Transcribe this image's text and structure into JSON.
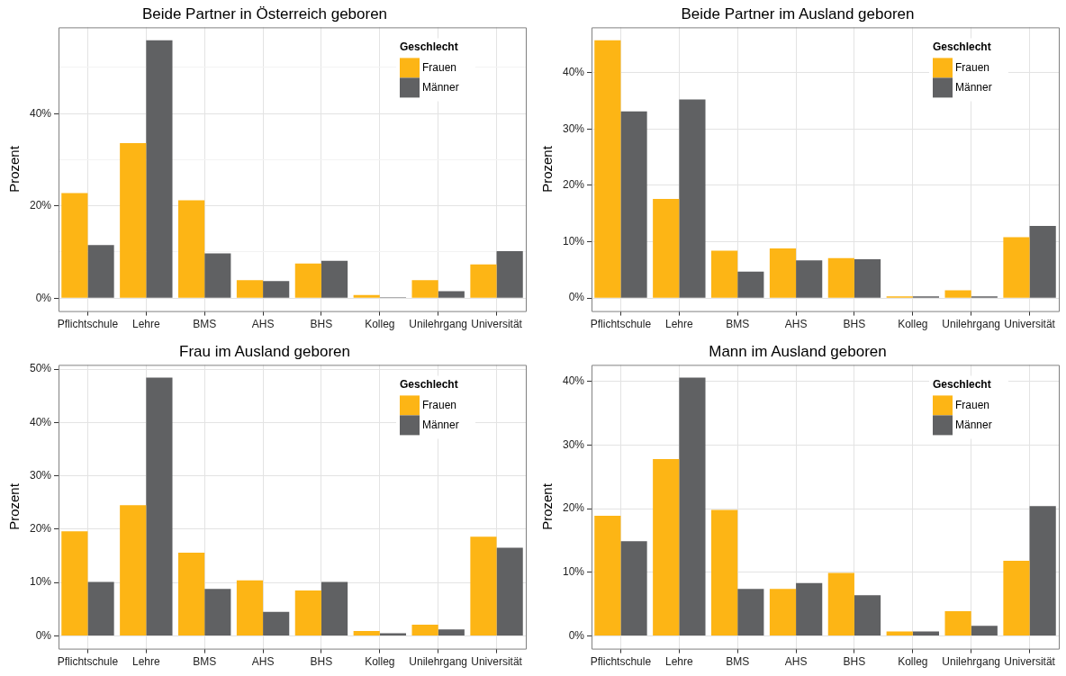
{
  "chart_data": [
    {
      "type": "bar",
      "title": "Beide Partner in Österreich geboren",
      "ylabel": "Prozent",
      "legend_title": "Geschlecht",
      "legend": "top right",
      "grid": true,
      "categories": [
        "Pflichtschule",
        "Lehre",
        "BMS",
        "AHS",
        "BHS",
        "Kolleg",
        "Unilehrgang",
        "Universität"
      ],
      "series": [
        {
          "name": "Frauen",
          "color": "#fdb515",
          "values": [
            22.8,
            33.6,
            21.2,
            3.9,
            7.5,
            0.7,
            3.9,
            7.3
          ]
        },
        {
          "name": "Männer",
          "color": "#606163",
          "values": [
            11.5,
            55.9,
            9.7,
            3.7,
            8.1,
            0.2,
            1.5,
            10.2
          ]
        }
      ],
      "ylim": [
        -2.8,
        58.7
      ],
      "yticks": [
        {
          "value": 0,
          "label": "0%"
        },
        {
          "value": 10,
          "label": null
        },
        {
          "value": 20,
          "label": "20%"
        },
        {
          "value": 30,
          "label": null
        },
        {
          "value": 40,
          "label": "40%"
        },
        {
          "value": 50,
          "label": null
        }
      ]
    },
    {
      "type": "bar",
      "title": "Beide Partner im Ausland geboren",
      "ylabel": "Prozent",
      "legend_title": "Geschlecht",
      "legend": "top right",
      "grid": true,
      "categories": [
        "Pflichtschule",
        "Lehre",
        "BMS",
        "AHS",
        "BHS",
        "Kolleg",
        "Unilehrgang",
        "Universität"
      ],
      "series": [
        {
          "name": "Frauen",
          "color": "#fdb515",
          "values": [
            45.7,
            17.6,
            8.4,
            8.8,
            7.1,
            0.3,
            1.4,
            10.8
          ]
        },
        {
          "name": "Männer",
          "color": "#606163",
          "values": [
            33.1,
            35.2,
            4.7,
            6.7,
            6.9,
            0.3,
            0.3,
            12.8
          ]
        }
      ],
      "ylim": [
        -2.3,
        48.0
      ],
      "yticks": [
        {
          "value": 0,
          "label": "0%"
        },
        {
          "value": 10,
          "label": "10%"
        },
        {
          "value": 20,
          "label": "20%"
        },
        {
          "value": 30,
          "label": "30%"
        },
        {
          "value": 40,
          "label": "40%"
        }
      ]
    },
    {
      "type": "bar",
      "title": "Frau im Ausland geboren",
      "ylabel": "Prozent",
      "legend_title": "Geschlecht",
      "legend": "top right",
      "grid": true,
      "categories": [
        "Pflichtschule",
        "Lehre",
        "BMS",
        "AHS",
        "BHS",
        "Kolleg",
        "Unilehrgang",
        "Universität"
      ],
      "series": [
        {
          "name": "Frauen",
          "color": "#fdb515",
          "values": [
            19.6,
            24.5,
            15.6,
            10.4,
            8.5,
            0.9,
            2.1,
            18.6
          ]
        },
        {
          "name": "Männer",
          "color": "#606163",
          "values": [
            10.1,
            48.4,
            8.8,
            4.5,
            10.1,
            0.5,
            1.2,
            16.5
          ]
        }
      ],
      "ylim": [
        -2.4,
        50.8
      ],
      "yticks": [
        {
          "value": 0,
          "label": "0%"
        },
        {
          "value": 10,
          "label": "10%"
        },
        {
          "value": 20,
          "label": "20%"
        },
        {
          "value": 30,
          "label": "30%"
        },
        {
          "value": 40,
          "label": "40%"
        },
        {
          "value": 50,
          "label": "50%"
        }
      ]
    },
    {
      "type": "bar",
      "title": "Mann im Ausland geboren",
      "ylabel": "Prozent",
      "legend_title": "Geschlecht",
      "legend": "top right",
      "grid": true,
      "categories": [
        "Pflichtschule",
        "Lehre",
        "BMS",
        "AHS",
        "BHS",
        "Kolleg",
        "Unilehrgang",
        "Universität"
      ],
      "series": [
        {
          "name": "Frauen",
          "color": "#fdb515",
          "values": [
            18.9,
            27.8,
            19.8,
            7.4,
            9.9,
            0.7,
            3.9,
            11.8
          ]
        },
        {
          "name": "Männer",
          "color": "#606163",
          "values": [
            14.9,
            40.6,
            7.4,
            8.3,
            6.4,
            0.7,
            1.6,
            20.4
          ]
        }
      ],
      "ylim": [
        -2.0,
        42.6
      ],
      "yticks": [
        {
          "value": 0,
          "label": "0%"
        },
        {
          "value": 10,
          "label": "10%"
        },
        {
          "value": 20,
          "label": "20%"
        },
        {
          "value": 30,
          "label": "30%"
        },
        {
          "value": 40,
          "label": "40%"
        }
      ]
    }
  ]
}
